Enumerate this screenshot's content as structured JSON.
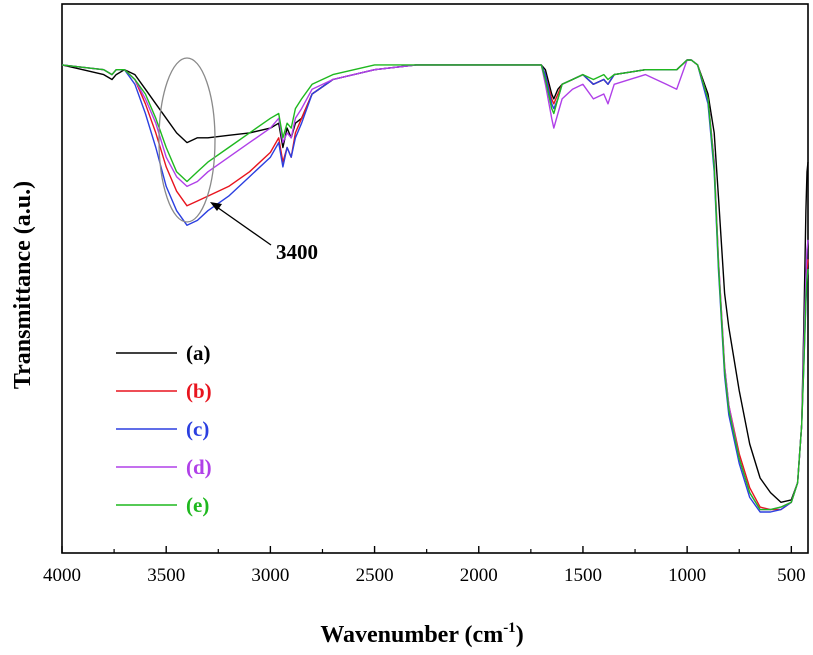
{
  "chart_data": {
    "type": "line",
    "title": "",
    "xlabel": "Wavenumber (cm",
    "xlabel_sup": "-1",
    "xlabel_close": ")",
    "ylabel": "Transmittance (a.u.)",
    "xlim": [
      4000,
      420
    ],
    "x_reversed": true,
    "ylim": [
      0,
      100
    ],
    "y_ticks_shown": false,
    "x_ticks": [
      4000,
      3500,
      3000,
      2500,
      2000,
      1500,
      1000,
      500
    ],
    "x_tick_labels": [
      "4000",
      "3500",
      "3000",
      "2500",
      "2000",
      "1500",
      "1000",
      "500"
    ],
    "grid": false,
    "legend_position": "lower-left",
    "annotation": {
      "text": "3400",
      "x": 3400,
      "shape": "ellipse",
      "arrow": true
    },
    "series": [
      {
        "name": "(a)",
        "color": "#000000",
        "x": [
          4000,
          3900,
          3800,
          3760,
          3740,
          3700,
          3650,
          3600,
          3550,
          3500,
          3450,
          3400,
          3350,
          3300,
          3200,
          3100,
          3000,
          2960,
          2940,
          2920,
          2900,
          2880,
          2850,
          2800,
          2700,
          2500,
          2300,
          2000,
          1800,
          1700,
          1680,
          1650,
          1640,
          1620,
          1600,
          1550,
          1500,
          1450,
          1400,
          1380,
          1350,
          1200,
          1100,
          1050,
          1000,
          980,
          950,
          900,
          870,
          850,
          820,
          800,
          750,
          700,
          650,
          600,
          550,
          500,
          470,
          450,
          440,
          430,
          425,
          420
        ],
        "y": [
          92,
          91,
          90,
          89,
          90,
          91,
          90,
          87,
          84,
          81,
          78,
          76,
          77,
          77,
          77.5,
          78,
          79,
          80,
          75,
          79,
          77,
          80,
          81,
          86,
          89,
          91,
          92,
          92,
          92,
          92,
          91,
          86,
          85,
          87,
          88,
          89,
          90,
          88,
          89,
          88,
          90,
          91,
          91,
          91,
          93,
          93,
          92,
          86,
          78,
          65,
          45,
          38,
          25,
          14,
          7,
          4,
          2,
          2.5,
          6,
          18,
          38,
          62,
          70,
          72
        ]
      },
      {
        "name": "(b)",
        "color": "#e8141e",
        "x": [
          4000,
          3900,
          3800,
          3760,
          3740,
          3700,
          3650,
          3600,
          3550,
          3500,
          3450,
          3400,
          3350,
          3300,
          3200,
          3100,
          3000,
          2960,
          2940,
          2920,
          2900,
          2880,
          2850,
          2800,
          2700,
          2500,
          2300,
          2000,
          1800,
          1700,
          1680,
          1650,
          1640,
          1620,
          1600,
          1550,
          1500,
          1450,
          1400,
          1380,
          1350,
          1200,
          1100,
          1050,
          1000,
          980,
          950,
          900,
          870,
          850,
          820,
          800,
          750,
          700,
          650,
          600,
          550,
          500,
          470,
          450,
          440,
          430,
          425,
          420
        ],
        "y": [
          92,
          91.5,
          91,
          90,
          91,
          91,
          89,
          84,
          78,
          71,
          66,
          63,
          64,
          65,
          67,
          70,
          74,
          77,
          72,
          75,
          73,
          78,
          81,
          86,
          89,
          91,
          92,
          92,
          92,
          92,
          90,
          85,
          84,
          86,
          88,
          89,
          90,
          88,
          89,
          88,
          90,
          91,
          91,
          91,
          93,
          93,
          92,
          85,
          72,
          52,
          30,
          22,
          12,
          5,
          1,
          0.5,
          0.5,
          2,
          6,
          18,
          32,
          45,
          50,
          52
        ]
      },
      {
        "name": "(c)",
        "color": "#2b3fe0",
        "x": [
          4000,
          3900,
          3800,
          3760,
          3740,
          3700,
          3650,
          3600,
          3550,
          3500,
          3450,
          3400,
          3350,
          3300,
          3200,
          3100,
          3000,
          2960,
          2940,
          2920,
          2900,
          2880,
          2850,
          2800,
          2700,
          2500,
          2300,
          2000,
          1800,
          1700,
          1680,
          1650,
          1640,
          1620,
          1600,
          1550,
          1500,
          1450,
          1400,
          1380,
          1350,
          1200,
          1100,
          1050,
          1000,
          980,
          950,
          900,
          870,
          850,
          820,
          800,
          750,
          700,
          650,
          600,
          550,
          500,
          470,
          450,
          440,
          430,
          425,
          420
        ],
        "y": [
          92,
          91.5,
          91,
          90,
          91,
          91,
          88,
          82,
          75,
          67,
          62,
          59,
          60,
          62,
          65,
          69,
          73,
          76,
          71,
          75,
          73,
          77,
          80,
          86,
          89,
          91,
          92,
          92,
          92,
          92,
          90,
          84,
          83,
          85,
          88,
          89,
          90,
          88,
          89,
          88,
          90,
          91,
          91,
          91,
          93,
          93,
          92,
          84,
          70,
          50,
          28,
          20,
          10,
          3,
          0,
          0,
          0.5,
          2,
          6,
          18,
          30,
          43,
          48,
          50
        ]
      },
      {
        "name": "(d)",
        "color": "#b040e8",
        "x": [
          4000,
          3900,
          3800,
          3760,
          3740,
          3700,
          3650,
          3600,
          3550,
          3500,
          3450,
          3400,
          3350,
          3300,
          3200,
          3100,
          3000,
          2960,
          2940,
          2920,
          2900,
          2880,
          2850,
          2800,
          2700,
          2500,
          2300,
          2000,
          1800,
          1700,
          1680,
          1650,
          1640,
          1620,
          1600,
          1550,
          1500,
          1450,
          1400,
          1380,
          1350,
          1200,
          1100,
          1050,
          1000,
          980,
          950,
          900,
          870,
          850,
          820,
          800,
          750,
          700,
          650,
          600,
          550,
          500,
          470,
          450,
          440,
          430,
          425,
          420
        ],
        "y": [
          92,
          91.5,
          91,
          90,
          91,
          91,
          89,
          85,
          80,
          73,
          69,
          67,
          68,
          70,
          73,
          76,
          79,
          81,
          76,
          78,
          77,
          81,
          83,
          87,
          89,
          91,
          92,
          92,
          92,
          92,
          88,
          81,
          79,
          82,
          85,
          87,
          88,
          85,
          86,
          84,
          88,
          90,
          88,
          87,
          93,
          93,
          92,
          85,
          72,
          52,
          30,
          22,
          11,
          4,
          0.5,
          0.5,
          1,
          2,
          6,
          18,
          34,
          48,
          54,
          56
        ]
      },
      {
        "name": "(e)",
        "color": "#1fb81f",
        "x": [
          4000,
          3900,
          3800,
          3760,
          3740,
          3700,
          3650,
          3600,
          3550,
          3500,
          3450,
          3400,
          3350,
          3300,
          3200,
          3100,
          3000,
          2960,
          2940,
          2920,
          2900,
          2880,
          2850,
          2800,
          2700,
          2500,
          2300,
          2000,
          1800,
          1700,
          1680,
          1650,
          1640,
          1620,
          1600,
          1550,
          1500,
          1450,
          1400,
          1380,
          1350,
          1200,
          1100,
          1050,
          1000,
          980,
          950,
          900,
          870,
          850,
          820,
          800,
          750,
          700,
          650,
          600,
          550,
          500,
          470,
          450,
          440,
          430,
          425,
          420
        ],
        "y": [
          92,
          91.5,
          91,
          90,
          91,
          91,
          89,
          86,
          81,
          75,
          70,
          68,
          70,
          72,
          75,
          78,
          81,
          82,
          77,
          80,
          79,
          83,
          85,
          88,
          90,
          92,
          92,
          92,
          92,
          92,
          89,
          83,
          82,
          85,
          88,
          89,
          90,
          89,
          90,
          89,
          90,
          91,
          91,
          91,
          93,
          93,
          92,
          85,
          71,
          51,
          29,
          21,
          11,
          4,
          0.5,
          0.5,
          1,
          2,
          6,
          18,
          30,
          44,
          48,
          50
        ]
      }
    ]
  }
}
